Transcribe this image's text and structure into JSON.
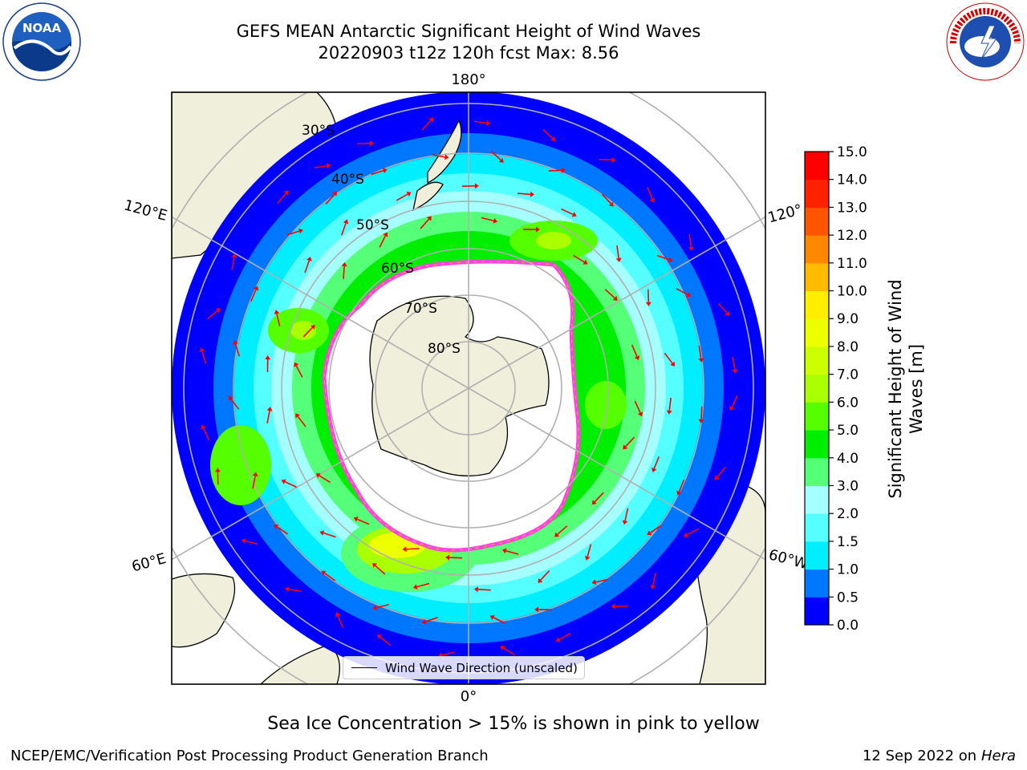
{
  "title": {
    "line1": "GEFS MEAN Antarctic Significant Height of Wind Waves",
    "line2": "20220903 t12z 120h fcst   Max: 8.56"
  },
  "logos": {
    "left": {
      "icon": "noaa-logo",
      "text": "NOAA"
    },
    "right": {
      "icon": "national-weather-service-logo",
      "text": "NATIONAL WEATHER SERVICE"
    }
  },
  "map": {
    "projection": "south-polar-stereographic",
    "longitude_labels": {
      "top": "180°",
      "bottom": "0°",
      "upper_left": "120°E",
      "upper_right": "120°",
      "lower_left": "60°E",
      "lower_right": "60°W"
    },
    "latitude_labels": [
      "30°S",
      "40°S",
      "50°S",
      "60°S",
      "70°S",
      "80°S"
    ],
    "colors": {
      "land": "#efefdb",
      "sea_ice_edge": "#ff44dd",
      "sea_ice_fill": "#ffffff",
      "arrows": "#ff0000",
      "grid": "#b0b0b0"
    }
  },
  "legend": {
    "label": "Wind Wave Direction (unscaled)"
  },
  "colorbar": {
    "label": "Significant Height of Wind Waves [m]",
    "label_line1": "Significant Height of Wind",
    "label_line2": "Waves [m]",
    "ticks": [
      "0.0",
      "0.5",
      "1.0",
      "1.5",
      "2.0",
      "3.0",
      "4.0",
      "5.0",
      "6.0",
      "7.0",
      "8.0",
      "9.0",
      "10.0",
      "11.0",
      "12.0",
      "13.0",
      "14.0",
      "15.0"
    ],
    "colors": [
      "#0000ff",
      "#0077ff",
      "#00eeff",
      "#55ffff",
      "#a5ffff",
      "#55ff77",
      "#00ee00",
      "#55ff00",
      "#aaff00",
      "#ccff00",
      "#eeff00",
      "#ffee00",
      "#ffbb00",
      "#ff8800",
      "#ff5500",
      "#ff2200",
      "#ff0000"
    ]
  },
  "note": "Sea Ice Concentration > 15% is shown in pink to yellow",
  "footer": {
    "left": "NCEP/EMC/Verification Post Processing Product Generation Branch",
    "right_date": "12 Sep 2022 on",
    "right_host": "Hera"
  }
}
